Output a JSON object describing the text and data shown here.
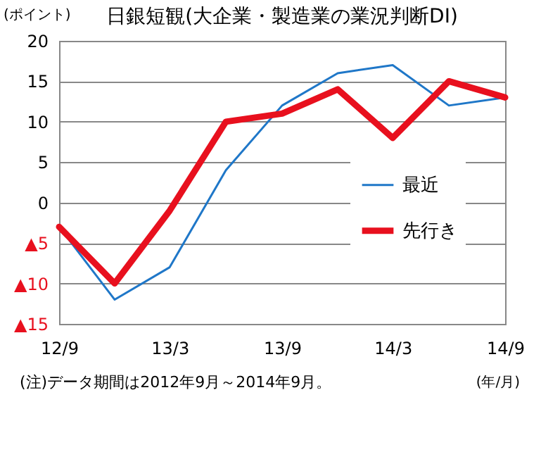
{
  "chart_data": {
    "type": "line",
    "title": "日銀短観(大企業・製造業の業況判断DI)",
    "ylabel": "(ポイント)",
    "xlabel": "(年/月)",
    "x": [
      "2012-09",
      "2012-12",
      "2013-03",
      "2013-06",
      "2013-09",
      "2013-12",
      "2014-03",
      "2014-06",
      "2014-09"
    ],
    "series": [
      {
        "name": "最近",
        "color": "#1f77c8",
        "values": [
          -3,
          -12,
          -8,
          4,
          12,
          16,
          17,
          12,
          13
        ]
      },
      {
        "name": "先行き",
        "color": "#e8101e",
        "values": [
          -3,
          -10,
          -1,
          10,
          11,
          14,
          8,
          15,
          13
        ]
      }
    ],
    "xlim": [
      "2012-09",
      "2014-09"
    ],
    "xticks": [
      {
        "value": "2012-09",
        "label": "12/9"
      },
      {
        "value": "2013-03",
        "label": "13/3"
      },
      {
        "value": "2013-09",
        "label": "13/9"
      },
      {
        "value": "2014-03",
        "label": "14/3"
      },
      {
        "value": "2014-09",
        "label": "14/9"
      }
    ],
    "ylim": [
      -15,
      20
    ],
    "yticks": [
      {
        "value": -15,
        "label": "▲15"
      },
      {
        "value": -10,
        "label": "▲10"
      },
      {
        "value": -5,
        "label": "▲5"
      },
      0,
      5,
      10,
      15,
      20
    ],
    "grid": "y",
    "legend": "right",
    "marker": "none",
    "line_style": "solid",
    "annotations": [
      "(注)データ期間は2012年9月～2014年9月。"
    ]
  }
}
